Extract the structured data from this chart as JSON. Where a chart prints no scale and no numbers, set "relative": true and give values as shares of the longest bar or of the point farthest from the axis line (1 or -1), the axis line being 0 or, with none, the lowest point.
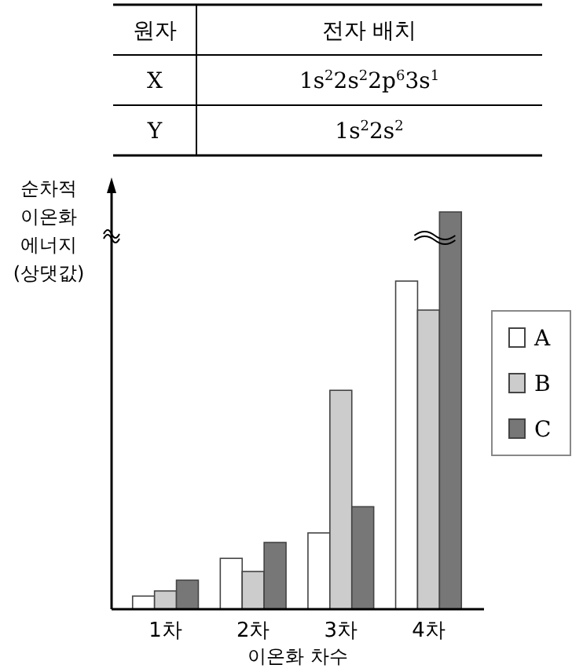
{
  "chart_data": {
    "type": "bar",
    "relative": true,
    "xlabel": "이온화 차수",
    "ylabel": "순차적\n이온화\n에너지\n(상댓값)",
    "categories": [
      "1차",
      "2차",
      "3차",
      "4차"
    ],
    "series": [
      {
        "name": "A",
        "color": "#ffffff",
        "values": [
          0.033,
          0.128,
          0.192,
          0.826
        ]
      },
      {
        "name": "B",
        "color": "#cccccc",
        "values": [
          0.046,
          0.095,
          0.551,
          0.753
        ]
      },
      {
        "name": "C",
        "color": "#777777",
        "values": [
          0.073,
          0.168,
          0.258,
          1
        ]
      }
    ],
    "legend": "right",
    "annotations": [
      "원자",
      "전자 배치",
      "X",
      "1s$^{2}$2s$^{2}$2p$^{6}$3s$^{1}$",
      "Y",
      "1s$^{2}$2s$^{2}$"
    ]
  }
}
